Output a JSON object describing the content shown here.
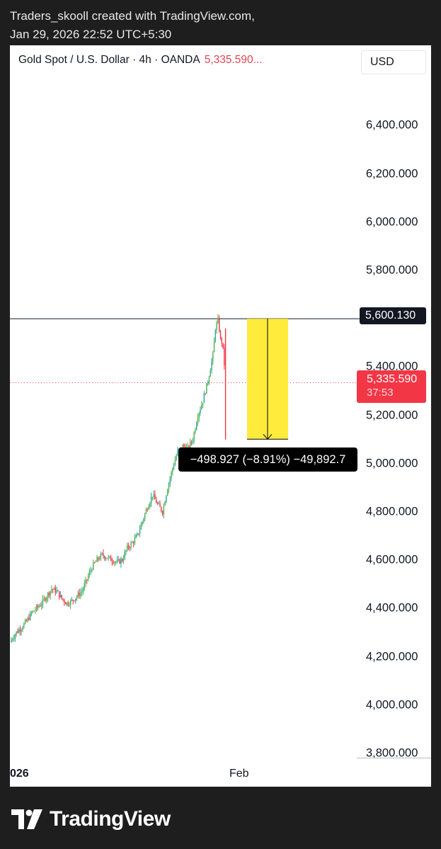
{
  "header": {
    "line1": "Traders_skooll created with TradingView.com,",
    "line2": "Jan 29, 2026 22:52 UTC+5:30"
  },
  "footer": {
    "brand": "TradingView"
  },
  "chart_data": {
    "type": "candlestick",
    "symbol": "Gold Spot / U.S. Dollar · 4h · OANDA",
    "last_price_label": "5,335.590...",
    "currency": "USD",
    "ylim": [
      3760,
      6450
    ],
    "y_ticks": [
      {
        "value": 6400,
        "label": "6,400.000"
      },
      {
        "value": 6200,
        "label": "6,200.000"
      },
      {
        "value": 6000,
        "label": "6,000.000"
      },
      {
        "value": 5800,
        "label": "5,800.000"
      },
      {
        "value": 5400,
        "label": "5,400.000"
      },
      {
        "value": 5200,
        "label": "5,200.000"
      },
      {
        "value": 5000,
        "label": "5,000.000"
      },
      {
        "value": 4800,
        "label": "4,800.000"
      },
      {
        "value": 4600,
        "label": "4,600.000"
      },
      {
        "value": 4400,
        "label": "4,400.000"
      },
      {
        "value": 4200,
        "label": "4,200.000"
      },
      {
        "value": 4000,
        "label": "4,000.000"
      },
      {
        "value": 3800,
        "label": "3,800.000"
      }
    ],
    "x_labels": [
      {
        "label": "026",
        "bold": true
      },
      {
        "label": "Feb",
        "bold": false
      }
    ],
    "horizontal_level": {
      "value": 5600.13,
      "label": "5,600.130"
    },
    "last_price": {
      "value": 5335.59,
      "label": "5,335.590",
      "countdown": "37:53"
    },
    "measurement": {
      "from": 5600.13,
      "to": 5101.2,
      "text": "−498.927 (−8.91%) −49,892.7"
    },
    "colors": {
      "up": "#26a69a",
      "up_alt": "#4caf50",
      "down": "#f23645",
      "highlight": "#ffeb3b",
      "level_line": "#131722"
    },
    "series_points": [
      [
        0,
        4270
      ],
      [
        4,
        4300
      ],
      [
        8,
        4320
      ],
      [
        12,
        4345
      ],
      [
        16,
        4380
      ],
      [
        20,
        4400
      ],
      [
        24,
        4420
      ],
      [
        28,
        4450
      ],
      [
        32,
        4480
      ],
      [
        36,
        4470
      ],
      [
        40,
        4440
      ],
      [
        44,
        4420
      ],
      [
        48,
        4430
      ],
      [
        52,
        4450
      ],
      [
        56,
        4470
      ],
      [
        60,
        4520
      ],
      [
        64,
        4570
      ],
      [
        68,
        4600
      ],
      [
        72,
        4620
      ],
      [
        76,
        4610
      ],
      [
        80,
        4600
      ],
      [
        84,
        4590
      ],
      [
        88,
        4600
      ],
      [
        92,
        4650
      ],
      [
        96,
        4670
      ],
      [
        100,
        4700
      ],
      [
        104,
        4760
      ],
      [
        108,
        4820
      ],
      [
        112,
        4870
      ],
      [
        116,
        4830
      ],
      [
        120,
        4800
      ],
      [
        124,
        4900
      ],
      [
        128,
        4980
      ],
      [
        132,
        5050
      ],
      [
        136,
        5070
      ],
      [
        140,
        5060
      ],
      [
        144,
        5100
      ],
      [
        148,
        5200
      ],
      [
        152,
        5260
      ],
      [
        156,
        5340
      ],
      [
        160,
        5450
      ],
      [
        162,
        5560
      ],
      [
        164,
        5590
      ],
      [
        166,
        5520
      ],
      [
        168,
        5480
      ],
      [
        170,
        5335.59
      ]
    ]
  }
}
